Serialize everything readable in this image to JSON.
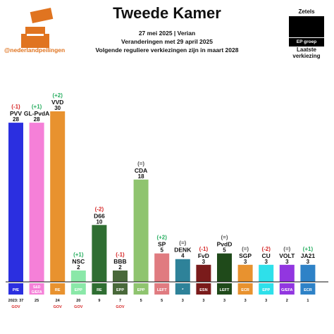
{
  "header": {
    "title": "Tweede Kamer",
    "line1": "27 mei 2025 | Verian",
    "line2": "Veranderingen met 29 april 2025",
    "line3": "Volgende reguliere verkiezingen zijn in maart 2028",
    "handle": "@nederlandpeilingen"
  },
  "legend": {
    "top": "Zetels",
    "box": "EP groep",
    "bottom1": "Laatste",
    "bottom2": "verkiezing"
  },
  "row_label": "2023: 37",
  "colors": {
    "positive": "#27ae60",
    "negative": "#d62828",
    "neutral": "#555555",
    "accent": "#e07420"
  },
  "chart_data": {
    "type": "bar",
    "categories": [
      "PVV",
      "GL-PvdA",
      "VVD",
      "NSC",
      "D66",
      "BBB",
      "CDA",
      "SP",
      "DENK",
      "FvD",
      "PvdD",
      "SGP",
      "CU",
      "VOLT",
      "JA21"
    ],
    "values": [
      28,
      28,
      30,
      2,
      10,
      2,
      18,
      5,
      4,
      3,
      5,
      3,
      3,
      3,
      3
    ],
    "change": [
      "(-1)",
      "(+1)",
      "(+2)",
      "(+1)",
      "(-2)",
      "(-1)",
      "(=)",
      "(+2)",
      "(=)",
      "(-1)",
      "(=)",
      "(=)",
      "(-2)",
      "(=)",
      "(+1)"
    ],
    "change_type": [
      "neg",
      "pos",
      "pos",
      "pos",
      "neg",
      "neg",
      "neu",
      "pos",
      "neu",
      "neg",
      "neu",
      "neu",
      "neg",
      "neu",
      "pos"
    ],
    "ep_group": [
      "PfE",
      "S&D G/EFA",
      "RE",
      "EPP",
      "RE",
      "EPP",
      "EPP",
      "LEFT",
      "*",
      "ESN",
      "LEFT",
      "ECR",
      "EPP",
      "G/EFA",
      "ECR"
    ],
    "last_election": [
      "37",
      "25",
      "24",
      "20",
      "9",
      "7",
      "5",
      "5",
      "3",
      "3",
      "3",
      "3",
      "3",
      "2",
      "1"
    ],
    "gov": [
      "GOV",
      "",
      "GOV",
      "GOV",
      "",
      "GOV",
      "",
      "",
      "",
      "",
      "",
      "",
      "",
      "",
      ""
    ],
    "colors": [
      "#2b2fe0",
      "#f580d8",
      "#e8922f",
      "#8ae8a8",
      "#2f6e32",
      "#49693a",
      "#8fc46f",
      "#e07b80",
      "#2e8299",
      "#7a1b1b",
      "#1f4a1a",
      "#e8922f",
      "#2ee0ea",
      "#9236e0",
      "#2e82c7"
    ],
    "ylim": [
      0,
      30
    ]
  }
}
